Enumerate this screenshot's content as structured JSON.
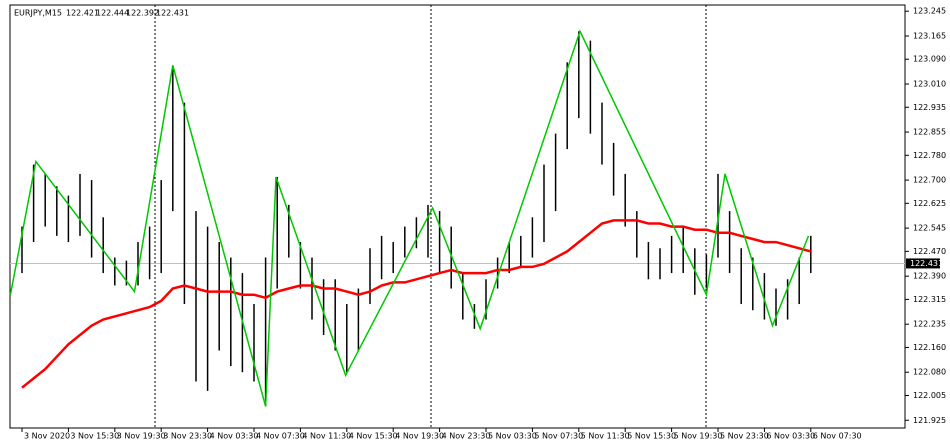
{
  "chart_data": {
    "type": "ohlc",
    "title": "EURJPY,M15",
    "ohlc": [
      122.421,
      122.444,
      122.392,
      122.431
    ],
    "current_price": 122.431,
    "bar_color": "#000000",
    "categories": [
      "3 Nov 2020",
      null,
      null,
      null,
      "3 Nov 15:30",
      null,
      null,
      null,
      "3 Nov 19:30",
      null,
      null,
      null,
      "3 Nov 23:30",
      null,
      null,
      null,
      "4 Nov 03:30",
      null,
      null,
      null,
      "4 Nov 07:30",
      null,
      null,
      null,
      "4 Nov 11:30",
      null,
      null,
      null,
      "4 Nov 15:30",
      null,
      null,
      null,
      "4 Nov 19:30",
      null,
      null,
      null,
      "4 Nov 23:30",
      null,
      null,
      null,
      "5 Nov 03:30",
      null,
      null,
      null,
      "5 Nov 07:30",
      null,
      null,
      null,
      "5 Nov 11:30",
      null,
      null,
      null,
      "5 Nov 15:30",
      null,
      null,
      null,
      "5 Nov 19:30",
      null,
      null,
      null,
      "5 Nov 23:30",
      null,
      null,
      null,
      "6 Nov 03:30",
      null,
      null,
      null,
      "6 Nov 07:30"
    ],
    "high": [
      122.55,
      122.75,
      122.72,
      122.68,
      122.65,
      122.72,
      122.7,
      122.58,
      122.45,
      122.44,
      122.5,
      122.55,
      122.7,
      123.07,
      122.95,
      122.6,
      122.55,
      122.5,
      122.45,
      122.4,
      122.3,
      122.45,
      122.71,
      122.62,
      122.5,
      122.45,
      122.38,
      122.38,
      122.3,
      122.35,
      122.48,
      122.52,
      122.5,
      122.55,
      122.58,
      122.62,
      122.6,
      122.55,
      122.4,
      122.3,
      122.38,
      122.45,
      122.5,
      122.52,
      122.58,
      122.75,
      122.85,
      123.08,
      123.18,
      123.15,
      122.95,
      122.82,
      122.72,
      122.6,
      122.5,
      122.48,
      122.52,
      122.55,
      122.48,
      122.46,
      122.72,
      122.6,
      122.48,
      122.45,
      122.4,
      122.35,
      122.38,
      122.45,
      122.52
    ],
    "low": [
      122.4,
      122.5,
      122.55,
      122.52,
      122.5,
      122.52,
      122.45,
      122.4,
      122.36,
      122.36,
      122.36,
      122.38,
      122.4,
      122.6,
      122.3,
      122.05,
      122.02,
      122.15,
      122.1,
      122.08,
      122.05,
      121.97,
      122.35,
      122.45,
      122.35,
      122.25,
      122.2,
      122.15,
      122.08,
      122.15,
      122.3,
      122.38,
      122.4,
      122.45,
      122.48,
      122.45,
      122.4,
      122.35,
      122.25,
      122.22,
      122.25,
      122.35,
      122.4,
      122.42,
      122.45,
      122.5,
      122.6,
      122.8,
      122.9,
      122.85,
      122.75,
      122.65,
      122.55,
      122.45,
      122.38,
      122.38,
      122.4,
      122.4,
      122.33,
      122.35,
      122.45,
      122.4,
      122.3,
      122.28,
      122.25,
      122.23,
      122.25,
      122.3,
      122.4
    ],
    "ma": {
      "color": "#ff0000",
      "values": [
        122.03,
        122.06,
        122.09,
        122.13,
        122.17,
        122.2,
        122.23,
        122.25,
        122.26,
        122.27,
        122.28,
        122.29,
        122.31,
        122.35,
        122.36,
        122.35,
        122.34,
        122.34,
        122.34,
        122.33,
        122.33,
        122.32,
        122.34,
        122.35,
        122.36,
        122.36,
        122.35,
        122.35,
        122.34,
        122.33,
        122.34,
        122.36,
        122.37,
        122.37,
        122.38,
        122.39,
        122.4,
        122.41,
        122.4,
        122.4,
        122.4,
        122.41,
        122.41,
        122.42,
        122.42,
        122.43,
        122.45,
        122.47,
        122.5,
        122.53,
        122.56,
        122.57,
        122.57,
        122.57,
        122.56,
        122.56,
        122.55,
        122.55,
        122.54,
        122.54,
        122.53,
        122.53,
        122.52,
        122.51,
        122.5,
        122.5,
        122.49,
        122.48,
        122.47
      ]
    },
    "zigzag": {
      "color": "#00c800",
      "x": [
        -1,
        1.2,
        9.7,
        13,
        21,
        21.9,
        27.9,
        35.4,
        39.5,
        48.1,
        59,
        60.6,
        64.7,
        67.8
      ],
      "values": [
        122.33,
        122.76,
        122.34,
        123.07,
        121.97,
        122.71,
        122.07,
        122.61,
        122.22,
        123.18,
        122.33,
        122.72,
        122.23,
        122.52
      ]
    },
    "ylim": [
      121.9,
      123.265
    ],
    "yticks": [
      123.245,
      123.165,
      {
        "value": 123.09,
        "label": "123.090"
      },
      {
        "value": 123.01,
        "label": "123.010"
      },
      122.935,
      122.855,
      {
        "value": 122.78,
        "label": "122.780"
      },
      {
        "value": 122.7,
        "label": "122.700"
      },
      122.625,
      122.545,
      {
        "value": 122.47,
        "label": "122.470"
      },
      {
        "value": 122.39,
        "label": "122.390"
      },
      122.315,
      122.235,
      {
        "value": 122.16,
        "label": "122.160"
      },
      {
        "value": 122.08,
        "label": "122.080"
      },
      122.005,
      121.925
    ]
  }
}
